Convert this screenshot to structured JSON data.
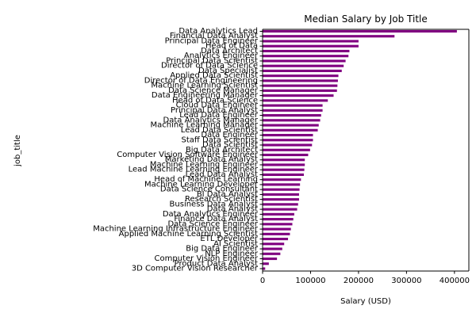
{
  "chart_data": {
    "type": "bar",
    "orientation": "horizontal",
    "title": "Median Salary by Job Title",
    "xlabel": "Salary (USD)",
    "ylabel": "job_title",
    "xlim": [
      0,
      430000
    ],
    "xticks": [
      0,
      100000,
      200000,
      300000,
      400000
    ],
    "xtick_labels": [
      "0",
      "100000",
      "200000",
      "300000",
      "400000"
    ],
    "grid": false,
    "bar_color": "#800080",
    "categories": [
      "Data Analytics Lead",
      "Financial Data Analyst",
      "Principal Data Engineer",
      "Head of Data",
      "Data Architect",
      "Analytics Engineer",
      "Principal Data Scientist",
      "Director of Data Science",
      "Data Specialist",
      "Applied Data Scientist",
      "Director of Data Engineering",
      "Machine Learning Scientist",
      "Data Science Manager",
      "Data Engineering Manager",
      "Head of Data Science",
      "Cloud Data Engineer",
      "Principal Data Analyst",
      "Lead Data Engineer",
      "Data Analytics Manager",
      "Machine Learning Manager",
      "Lead Data Scientist",
      "Data Engineer",
      "Staff Data Scientist",
      "Data Scientist",
      "Big Data Architect",
      "Computer Vision Software Engineer",
      "Marketing Data Analyst",
      "Machine Learning Engineer",
      "Lead Machine Learning Engineer",
      "Lead Data Analyst",
      "Head of Machine Learning",
      "Machine Learning Developer",
      "Data Science Consultant",
      "BI Data Analyst",
      "Research Scientist",
      "Business Data Analyst",
      "Data Analyst",
      "Data Analytics Engineer",
      "Finance Data Analyst",
      "Data Science Engineer",
      "Machine Learning Infrastructure Engineer",
      "Applied Machine Learning Scientist",
      "ETL Developer",
      "AI Scientist",
      "Big Data Engineer",
      "NLP Engineer",
      "Computer Vision Engineer",
      "Product Data Analyst",
      "3D Computer Vision Researcher"
    ],
    "values": [
      405000,
      275000,
      200000,
      200000,
      181000,
      179000,
      173000,
      169000,
      165000,
      158000,
      157000,
      156000,
      155000,
      148000,
      136000,
      125000,
      125000,
      122000,
      120000,
      117000,
      115000,
      105000,
      105000,
      103000,
      99000,
      95000,
      88000,
      88000,
      87000,
      86000,
      80000,
      78000,
      77000,
      76000,
      76000,
      74000,
      72000,
      66000,
      64000,
      62000,
      59000,
      57000,
      53000,
      45000,
      41000,
      37000,
      30000,
      13000,
      5400
    ]
  }
}
